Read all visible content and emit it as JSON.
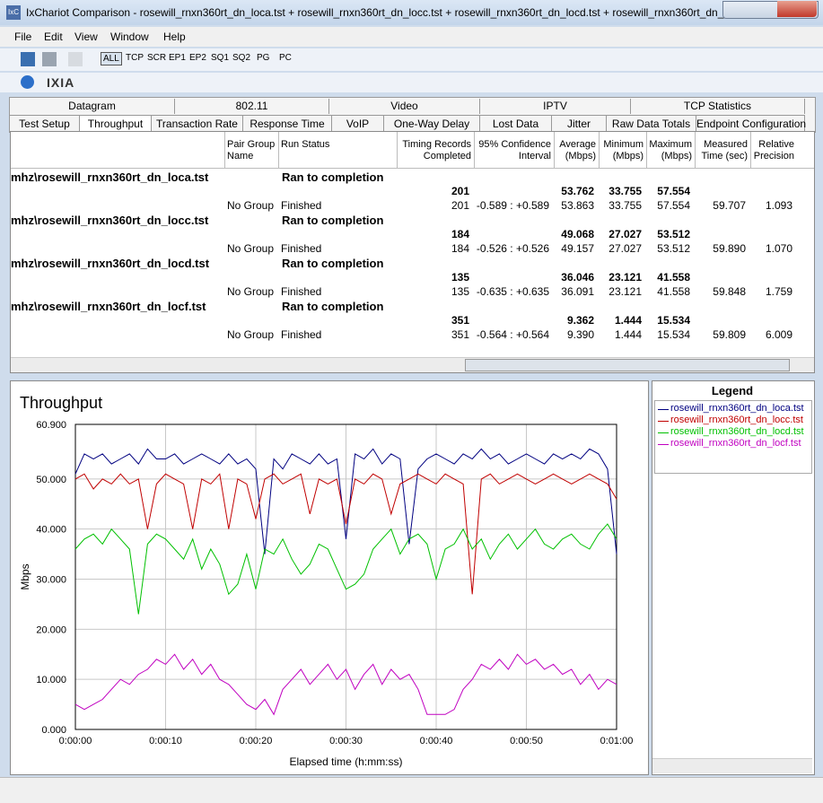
{
  "window": {
    "title": "IxChariot Comparison - rosewill_rnxn360rt_dn_loca.tst + rosewill_rnxn360rt_dn_locc.tst + rosewill_rnxn360rt_dn_locd.tst + rosewill_rnxn360rt_dn_...",
    "icon": "IxC"
  },
  "menu": [
    "File",
    "Edit",
    "View",
    "Window",
    "Help"
  ],
  "toolbar": [
    "ALL",
    "TCP",
    "SCR",
    "EP1",
    "EP2",
    "SQ1",
    "SQ2",
    "PG",
    "PC"
  ],
  "brand": "IXIA",
  "tabs_top": [
    "Datagram",
    "802.11",
    "Video",
    "IPTV",
    "TCP Statistics"
  ],
  "tabs_bottom": [
    "Test Setup",
    "Throughput",
    "Transaction Rate",
    "Response Time",
    "VoIP",
    "One-Way Delay",
    "Lost Data",
    "Jitter",
    "Raw Data Totals",
    "Endpoint Configuration"
  ],
  "table": {
    "columns": [
      "Pair Group Name",
      "Run Status",
      "Timing Records Completed",
      "95% Confidence Interval",
      "Average (Mbps)",
      "Minimum (Mbps)",
      "Maximum (Mbps)",
      "Measured Time (sec)",
      "Relative Precision"
    ],
    "groups": [
      {
        "file": "mhz\\rosewill_rnxn360rt_dn_loca.tst",
        "status": "Ran to completion",
        "summary": [
          "201",
          "53.762",
          "33.755",
          "57.554"
        ],
        "pair": [
          "No Group",
          "Finished",
          "201",
          "-0.589 : +0.589",
          "53.863",
          "33.755",
          "57.554",
          "59.707",
          "1.093"
        ]
      },
      {
        "file": "mhz\\rosewill_rnxn360rt_dn_locc.tst",
        "status": "Ran to completion",
        "summary": [
          "184",
          "49.068",
          "27.027",
          "53.512"
        ],
        "pair": [
          "No Group",
          "Finished",
          "184",
          "-0.526 : +0.526",
          "49.157",
          "27.027",
          "53.512",
          "59.890",
          "1.070"
        ]
      },
      {
        "file": "mhz\\rosewill_rnxn360rt_dn_locd.tst",
        "status": "Ran to completion",
        "summary": [
          "135",
          "36.046",
          "23.121",
          "41.558"
        ],
        "pair": [
          "No Group",
          "Finished",
          "135",
          "-0.635 : +0.635",
          "36.091",
          "23.121",
          "41.558",
          "59.848",
          "1.759"
        ]
      },
      {
        "file": "mhz\\rosewill_rnxn360rt_dn_locf.tst",
        "status": "Ran to completion",
        "summary": [
          "351",
          "9.362",
          "1.444",
          "15.534"
        ],
        "pair": [
          "No Group",
          "Finished",
          "351",
          "-0.564 : +0.564",
          "9.390",
          "1.444",
          "15.534",
          "59.809",
          "6.009"
        ]
      }
    ]
  },
  "chart_data": {
    "type": "line",
    "title": "Throughput",
    "x_label": "Elapsed time (h:mm:ss)",
    "y_label": "Mbps",
    "legend_title": "Legend",
    "grid": true,
    "legend": "right",
    "x": [
      0,
      1,
      2,
      3,
      4,
      5,
      6,
      7,
      8,
      9,
      10,
      11,
      12,
      13,
      14,
      15,
      16,
      17,
      18,
      19,
      20,
      21,
      22,
      23,
      24,
      25,
      26,
      27,
      28,
      29,
      30,
      31,
      32,
      33,
      34,
      35,
      36,
      37,
      38,
      39,
      40,
      41,
      42,
      43,
      44,
      45,
      46,
      47,
      48,
      49,
      50,
      51,
      52,
      53,
      54,
      55,
      56,
      57,
      58,
      59,
      60
    ],
    "xlim": [
      0,
      60
    ],
    "xticks": [
      {
        "value": 0,
        "label": "0:00:00"
      },
      {
        "value": 10,
        "label": "0:00:10"
      },
      {
        "value": 20,
        "label": "0:00:20"
      },
      {
        "value": 30,
        "label": "0:00:30"
      },
      {
        "value": 40,
        "label": "0:00:40"
      },
      {
        "value": 50,
        "label": "0:00:50"
      },
      {
        "value": 60,
        "label": "0:01:00"
      }
    ],
    "ylim": [
      0,
      60.9
    ],
    "yticks": [
      {
        "value": 0,
        "label": "0.000"
      },
      {
        "value": 10,
        "label": "10.000"
      },
      {
        "value": 20,
        "label": "20.000"
      },
      {
        "value": 30,
        "label": "30.000"
      },
      {
        "value": 40,
        "label": "40.000"
      },
      {
        "value": 50,
        "label": "50.000"
      },
      {
        "value": 60.9,
        "label": "60.900"
      }
    ],
    "series": [
      {
        "name": "rosewill_rnxn360rt_dn_loca.tst",
        "color": "#000080",
        "values": [
          51,
          55,
          54,
          55,
          53,
          54,
          55,
          53,
          56,
          54,
          54,
          55,
          53,
          54,
          55,
          54,
          53,
          55,
          53,
          54,
          52,
          35,
          54,
          52,
          55,
          54,
          53,
          55,
          53,
          54,
          38,
          55,
          54,
          56,
          53,
          55,
          54,
          37,
          52,
          54,
          55,
          54,
          53,
          55,
          54,
          56,
          54,
          55,
          53,
          54,
          55,
          54,
          53,
          55,
          54,
          55,
          54,
          56,
          55,
          52,
          35
        ]
      },
      {
        "name": "rosewill_rnxn360rt_dn_locc.tst",
        "color": "#c00000",
        "values": [
          50,
          51,
          48,
          50,
          49,
          51,
          49,
          50,
          40,
          49,
          51,
          50,
          49,
          40,
          50,
          49,
          51,
          40,
          50,
          49,
          42,
          50,
          51,
          49,
          50,
          51,
          43,
          50,
          49,
          50,
          41,
          50,
          49,
          51,
          50,
          43,
          49,
          50,
          51,
          50,
          49,
          51,
          50,
          49,
          27,
          50,
          51,
          49,
          50,
          51,
          50,
          49,
          50,
          51,
          50,
          49,
          50,
          51,
          50,
          49,
          46
        ]
      },
      {
        "name": "rosewill_rnxn360rt_dn_locd.tst",
        "color": "#00c000",
        "values": [
          36,
          38,
          39,
          37,
          40,
          38,
          36,
          23,
          37,
          39,
          38,
          36,
          34,
          38,
          32,
          36,
          33,
          27,
          29,
          35,
          28,
          36,
          35,
          38,
          34,
          31,
          33,
          37,
          36,
          32,
          28,
          29,
          31,
          36,
          38,
          40,
          35,
          38,
          39,
          37,
          30,
          36,
          37,
          40,
          36,
          38,
          34,
          37,
          39,
          36,
          38,
          40,
          37,
          36,
          38,
          39,
          37,
          36,
          39,
          41,
          38
        ]
      },
      {
        "name": "rosewill_rnxn360rt_dn_locf.tst",
        "color": "#c000c0",
        "values": [
          5,
          4,
          5,
          6,
          8,
          10,
          9,
          11,
          12,
          14,
          13,
          15,
          12,
          14,
          11,
          13,
          10,
          9,
          7,
          5,
          4,
          6,
          3,
          8,
          10,
          12,
          9,
          11,
          13,
          10,
          12,
          8,
          11,
          13,
          9,
          12,
          10,
          11,
          8,
          3,
          3,
          3,
          4,
          8,
          10,
          13,
          12,
          14,
          12,
          15,
          13,
          14,
          12,
          13,
          11,
          12,
          9,
          11,
          8,
          10,
          9
        ]
      }
    ]
  }
}
